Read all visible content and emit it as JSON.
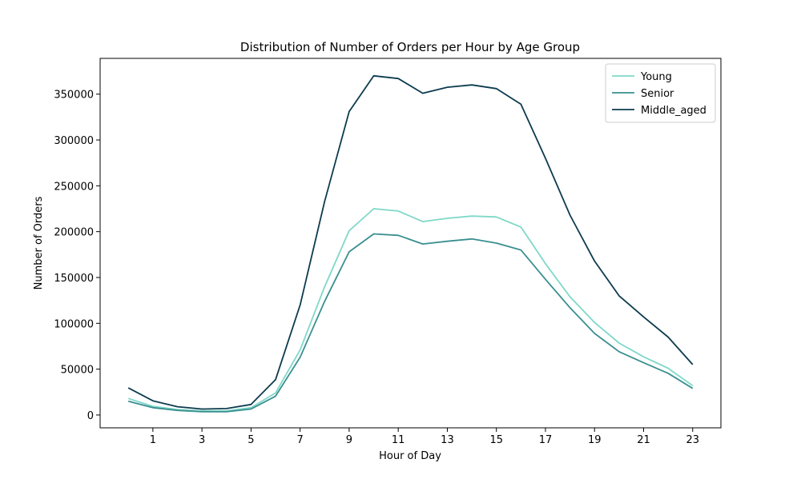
{
  "chart_data": {
    "type": "line",
    "title": "Distribution of Number of Orders per Hour by Age Group",
    "xlabel": "Hour of Day",
    "ylabel": "Number of Orders",
    "x": [
      0,
      1,
      2,
      3,
      4,
      5,
      6,
      7,
      8,
      9,
      10,
      11,
      12,
      13,
      14,
      15,
      16,
      17,
      18,
      19,
      20,
      21,
      22,
      23
    ],
    "xticks": [
      1,
      3,
      5,
      7,
      9,
      11,
      13,
      15,
      17,
      19,
      21,
      23
    ],
    "xlim": [
      -1.15,
      24.15
    ],
    "yticks": [
      0,
      50000,
      100000,
      150000,
      200000,
      250000,
      300000,
      350000
    ],
    "ylim": [
      -14000,
      389000
    ],
    "grid": false,
    "legend_position": "top-right",
    "series": [
      {
        "name": "Young",
        "color": "#7fd8c8",
        "values": [
          18000,
          9500,
          6000,
          4500,
          4500,
          8000,
          24000,
          71000,
          140000,
          201000,
          225000,
          222500,
          211000,
          214500,
          217000,
          216000,
          205000,
          165000,
          129000,
          101000,
          78500,
          63500,
          51000,
          32000
        ]
      },
      {
        "name": "Senior",
        "color": "#3a8f90",
        "values": [
          15000,
          8000,
          5000,
          3500,
          3500,
          6500,
          20500,
          63000,
          124000,
          178000,
          197500,
          196000,
          186500,
          189500,
          192000,
          187500,
          180000,
          148000,
          117000,
          89000,
          69000,
          57000,
          45500,
          29000
        ]
      },
      {
        "name": "Middle_aged",
        "color": "#0d3b4e",
        "values": [
          29500,
          15500,
          9000,
          6500,
          7000,
          11500,
          38500,
          120000,
          233000,
          331000,
          370000,
          367000,
          351000,
          357500,
          360000,
          356000,
          339000,
          280000,
          218000,
          168000,
          130000,
          107000,
          85000,
          55000
        ]
      }
    ]
  }
}
